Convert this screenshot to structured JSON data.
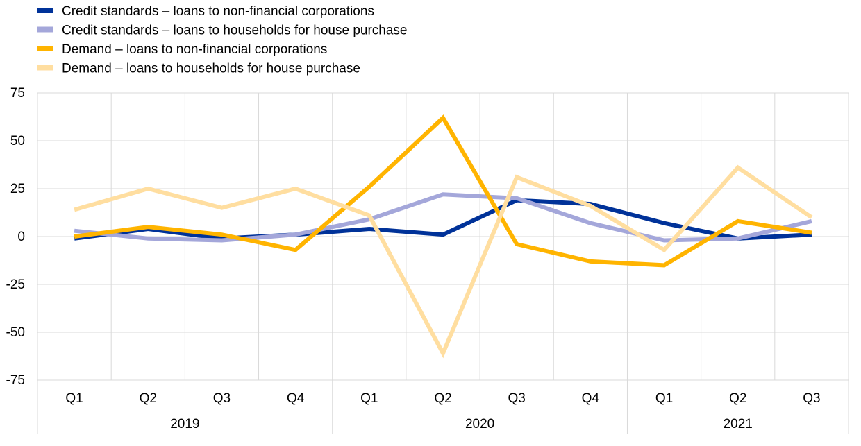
{
  "chart_data": {
    "type": "line",
    "title": "",
    "xlabel": "",
    "ylabel": "",
    "ylim": [
      -75,
      75
    ],
    "yticks": [
      75,
      50,
      25,
      0,
      -25,
      -50,
      -75
    ],
    "grid": true,
    "legend_position": "top-left",
    "categories": [
      "Q1",
      "Q2",
      "Q3",
      "Q4",
      "Q1",
      "Q2",
      "Q3",
      "Q4",
      "Q1",
      "Q2",
      "Q3"
    ],
    "years": [
      {
        "label": "2019",
        "span": 4
      },
      {
        "label": "2020",
        "span": 4
      },
      {
        "label": "2021",
        "span": 3
      }
    ],
    "series": [
      {
        "name": "Credit standards – loans to non-financial corporations",
        "color": "#003299",
        "values": [
          -1,
          4,
          -1,
          1,
          4,
          1,
          19,
          17,
          7,
          -1,
          1
        ]
      },
      {
        "name": "Credit standards – loans to households for house purchase",
        "color": "#A4A7DA",
        "values": [
          3,
          -1,
          -2,
          1,
          9,
          22,
          20,
          7,
          -2,
          -1,
          8
        ]
      },
      {
        "name": "Demand – loans to non-financial corporations",
        "color": "#FFB400",
        "values": [
          0,
          5,
          1,
          -7,
          26,
          62,
          -4,
          -13,
          -15,
          8,
          2
        ]
      },
      {
        "name": "Demand – loans to households for house purchase",
        "color": "#FFDEA0",
        "values": [
          14,
          25,
          15,
          25,
          11,
          -61,
          31,
          16,
          -7,
          36,
          10
        ]
      }
    ]
  }
}
